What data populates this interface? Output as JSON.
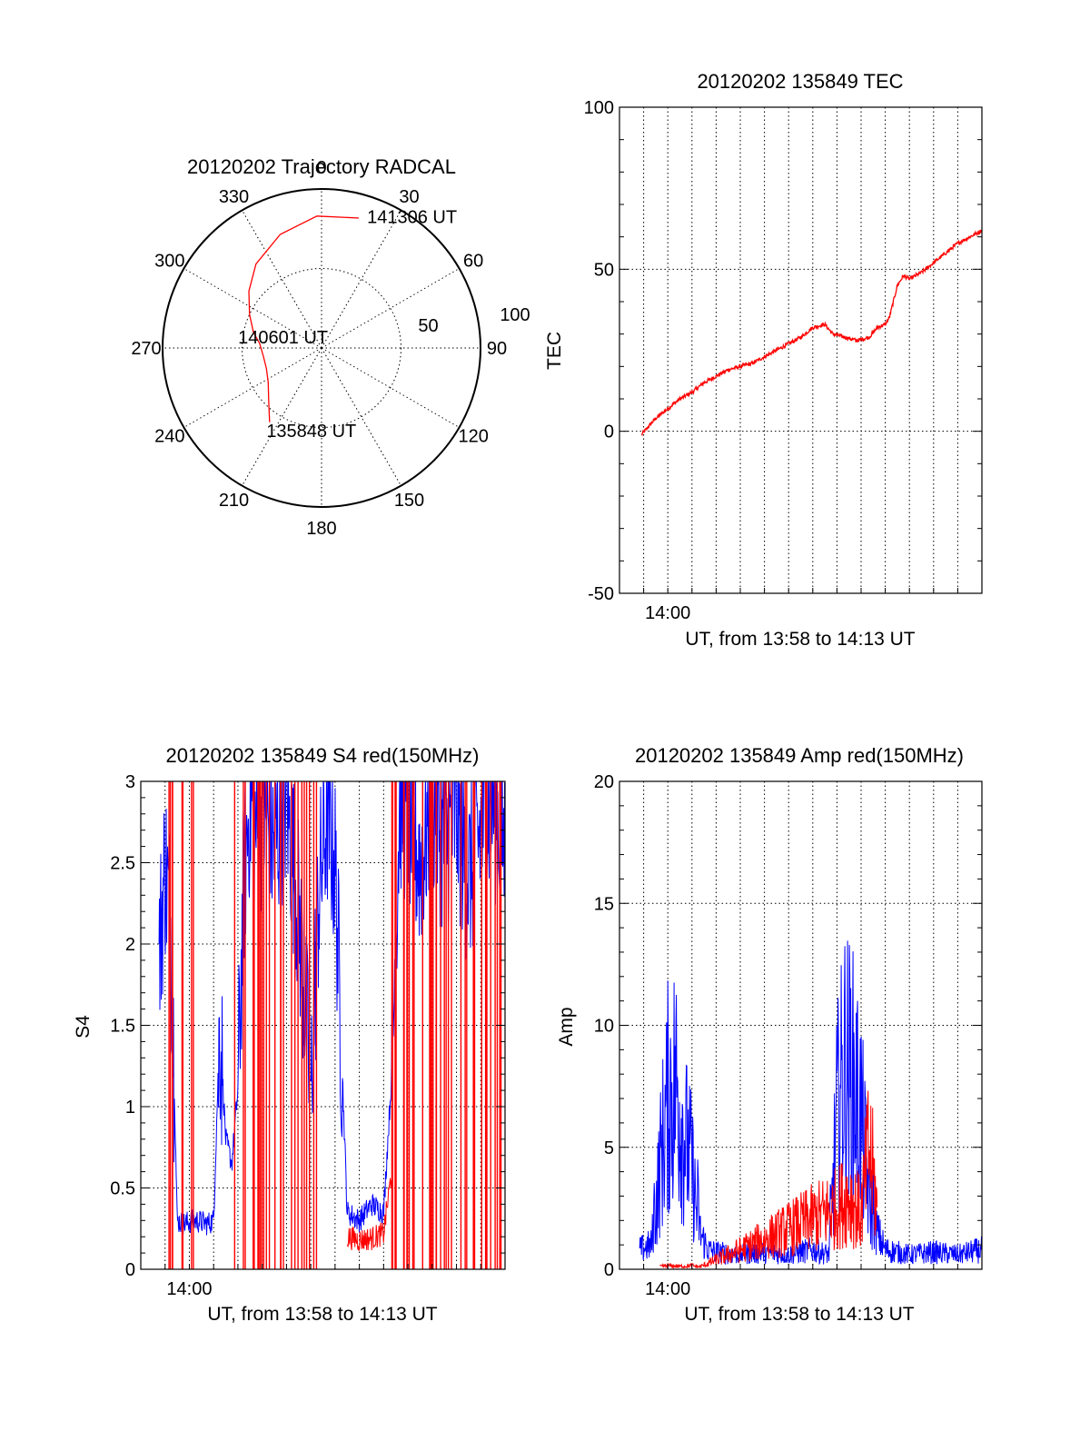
{
  "colors": {
    "red": "#ff0000",
    "blue": "#0000ff",
    "axis": "#000000"
  },
  "chart_data": [
    {
      "id": "trajectory",
      "type": "polar",
      "title": "20120202 Trajectory RADCAL",
      "angle_labels": [
        "0",
        "30",
        "60",
        "90",
        "120",
        "150",
        "180",
        "210",
        "240",
        "270",
        "300",
        "330"
      ],
      "radial_labels": [
        "50",
        "100"
      ],
      "elevation_ticks": [
        50,
        100
      ],
      "outer_radius_value": 100,
      "track": {
        "color": "#ff0000",
        "points": [
          {
            "az": 215,
            "el": 43
          },
          {
            "az": 225,
            "el": 53
          },
          {
            "az": 237,
            "el": 60
          },
          {
            "az": 250,
            "el": 63
          },
          {
            "az": 262,
            "el": 63
          },
          {
            "az": 274,
            "el": 61
          },
          {
            "az": 283,
            "el": 56
          },
          {
            "az": 295,
            "el": 50
          },
          {
            "az": 308,
            "el": 42
          },
          {
            "az": 322,
            "el": 33
          },
          {
            "az": 340,
            "el": 24
          },
          {
            "az": 358,
            "el": 17
          },
          {
            "az": 16,
            "el": 15
          }
        ]
      },
      "annotations": [
        {
          "text": "135848 UT",
          "az": 214,
          "el": 38
        },
        {
          "text": "140601 UT",
          "az": 278,
          "el": 47
        },
        {
          "text": "141306 UT",
          "az": 19,
          "el": 12
        }
      ]
    },
    {
      "id": "tec",
      "type": "line",
      "title": "20120202 135849 TEC",
      "ylabel": "TEC",
      "xlabel": "UT, from 13:58 to 14:13 UT",
      "x_tick_labels": [
        {
          "t": "14:00",
          "label": "14:00"
        }
      ],
      "xlim": [
        "13:58",
        "14:13"
      ],
      "ylim": [
        -50,
        100
      ],
      "yticks": [
        -50,
        0,
        50,
        100
      ],
      "grid": true,
      "series": [
        {
          "color": "#ff0000",
          "x": [
            "13:58:55",
            "13:59:30",
            "14:00:00",
            "14:00:30",
            "14:01:00",
            "14:01:30",
            "14:02:00",
            "14:02:30",
            "14:03:00",
            "14:03:30",
            "14:04:00",
            "14:04:30",
            "14:05:00",
            "14:05:30",
            "14:06:00",
            "14:06:30",
            "14:06:50",
            "14:07:20",
            "14:07:50",
            "14:08:20",
            "14:08:40",
            "14:09:00",
            "14:09:10",
            "14:09:20",
            "14:09:30",
            "14:09:45",
            "14:10:00",
            "14:10:30",
            "14:11:00",
            "14:11:30",
            "14:12:00",
            "14:12:30",
            "14:13:00"
          ],
          "y": [
            -1,
            4,
            7,
            10,
            12,
            15,
            17,
            19,
            20,
            21,
            23,
            25,
            27,
            29,
            32,
            33,
            30,
            29,
            28,
            29,
            32,
            33,
            35,
            40,
            45,
            48,
            47,
            49,
            52,
            55,
            58,
            60,
            62
          ]
        }
      ]
    },
    {
      "id": "s4",
      "type": "line",
      "title": "20120202 135849 S4 red(150MHz)",
      "ylabel": "S4",
      "xlabel": "UT, from 13:58 to 14:13 UT",
      "x_tick_labels": [
        {
          "t": "14:00",
          "label": "14:00"
        }
      ],
      "xlim": [
        "13:58",
        "14:13"
      ],
      "ylim": [
        0,
        3
      ],
      "yticks": [
        0,
        0.5,
        1,
        1.5,
        2,
        2.5,
        3
      ],
      "ytick_labels": [
        "0",
        "0.5",
        "1",
        "1.5",
        "2",
        "2.5",
        "3"
      ],
      "grid": true,
      "series": [
        {
          "color": "#0000ff",
          "x": [
            "13:58:45",
            "13:59:00",
            "13:59:15",
            "13:59:30",
            "13:59:45",
            "14:00:15",
            "14:00:45",
            "14:01:00",
            "14:01:15",
            "14:01:30",
            "14:01:45",
            "14:02:00",
            "14:02:15",
            "14:02:30",
            "14:02:45",
            "14:03:00",
            "14:03:30",
            "14:04:00",
            "14:04:30",
            "14:05:00",
            "14:05:20",
            "14:05:40",
            "14:06:00",
            "14:06:30",
            "14:07:00",
            "14:07:30",
            "14:08:00",
            "14:08:20",
            "14:08:40",
            "14:09:00",
            "14:09:30",
            "14:10:00",
            "14:10:30",
            "14:11:00",
            "14:11:30",
            "14:12:00",
            "14:12:30",
            "14:13:00"
          ],
          "y": [
            1.9,
            2.5,
            2.1,
            0.3,
            0.28,
            0.3,
            0.28,
            0.3,
            1.5,
            0.8,
            0.65,
            1.1,
            2.4,
            2.9,
            2.7,
            2.8,
            2.6,
            2.9,
            2.2,
            1.1,
            2.3,
            2.8,
            2.5,
            0.35,
            0.3,
            0.4,
            0.35,
            1.2,
            2.9,
            2.8,
            2.5,
            2.9,
            2.6,
            2.8,
            2.4,
            2.7,
            2.9,
            2.6
          ]
        },
        {
          "color": "#ff0000",
          "x": [
            "14:06:30",
            "14:07:00",
            "14:07:30",
            "14:08:00",
            "14:08:20"
          ],
          "y": [
            0.2,
            0.18,
            0.19,
            0.22,
            0.6
          ]
        }
      ]
    },
    {
      "id": "amp",
      "type": "line",
      "title": "20120202 135849 Amp red(150MHz)",
      "ylabel": "Amp",
      "xlabel": "UT, from 13:58 to 14:13 UT",
      "x_tick_labels": [
        {
          "t": "14:00",
          "label": "14:00"
        }
      ],
      "xlim": [
        "13:58",
        "14:13"
      ],
      "ylim": [
        0,
        20
      ],
      "yticks": [
        0,
        5,
        10,
        15,
        20
      ],
      "grid": true,
      "series": [
        {
          "color": "#0000ff",
          "x": [
            "13:58:50",
            "13:59:20",
            "13:59:40",
            "14:00:00",
            "14:00:20",
            "14:00:40",
            "14:01:00",
            "14:01:20",
            "14:01:40",
            "14:02:00",
            "14:03:00",
            "14:04:00",
            "14:05:00",
            "14:06:00",
            "14:06:40",
            "14:07:00",
            "14:07:20",
            "14:07:40",
            "14:08:00",
            "14:08:20",
            "14:08:40",
            "14:09:00",
            "14:09:30",
            "14:10:00",
            "14:11:00",
            "14:12:00",
            "14:13:00"
          ],
          "y": [
            0.8,
            1.0,
            6,
            10,
            11,
            8,
            6,
            1.5,
            0.8,
            0.7,
            0.6,
            0.7,
            0.6,
            0.8,
            0.6,
            9,
            12,
            11,
            9,
            4,
            1.5,
            0.8,
            0.7,
            0.6,
            0.7,
            0.6,
            0.8
          ]
        },
        {
          "color": "#ff0000",
          "x": [
            "13:59:40",
            "14:00:00",
            "14:00:30",
            "14:01:00",
            "14:01:20",
            "14:07:00",
            "14:07:30",
            "14:08:00",
            "14:08:20",
            "14:08:40"
          ],
          "y": [
            0.1,
            0.15,
            0.12,
            0.15,
            0.1,
            2.5,
            3,
            2.2,
            5,
            2.5
          ]
        }
      ]
    }
  ]
}
